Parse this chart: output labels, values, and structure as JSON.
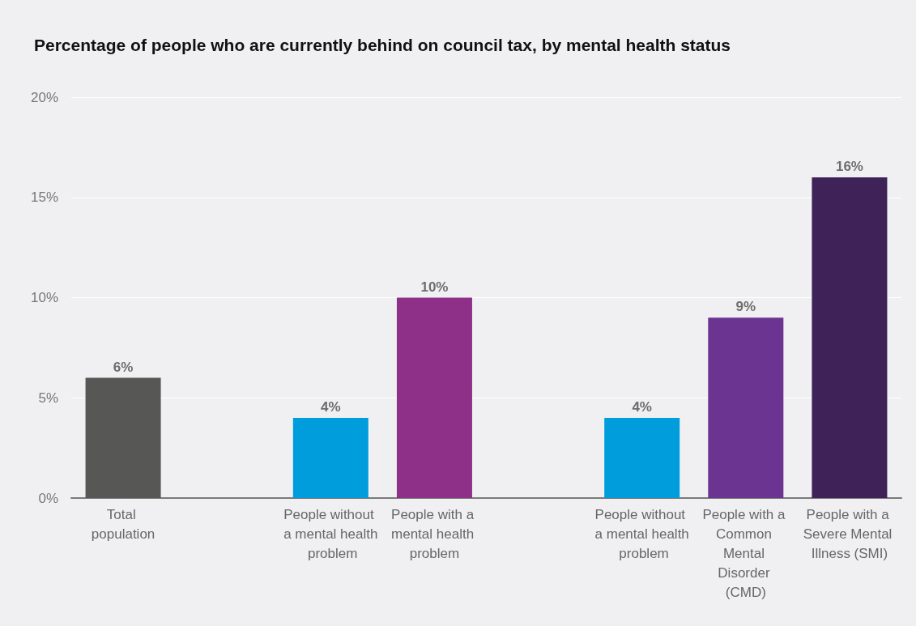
{
  "chart_data": {
    "type": "bar",
    "title": "Percentage of people who are currently behind on council tax, by mental health status",
    "categories": [
      "Total population",
      null,
      "People without a mental health problem",
      "People with a mental health problem",
      null,
      "People without a mental health problem",
      "People with a Common Mental Disorder (CMD)",
      "People with a Severe Mental Illness (SMI)"
    ],
    "values": [
      6,
      null,
      4,
      10,
      null,
      4,
      9,
      16
    ],
    "colors": [
      "#575756",
      null,
      "#009ddc",
      "#8e2f88",
      null,
      "#009ddc",
      "#6a3490",
      "#3f2358"
    ],
    "value_labels": [
      "6%",
      null,
      "4%",
      "10%",
      null,
      "4%",
      "9%",
      "16%"
    ],
    "ylim": [
      0,
      20
    ],
    "yticks": [
      {
        "value": 0,
        "label": "0%"
      },
      {
        "value": 5,
        "label": "5%"
      },
      {
        "value": 10,
        "label": "10%"
      },
      {
        "value": 15,
        "label": "15%"
      },
      {
        "value": 20,
        "label": "20%"
      }
    ],
    "grid": "y"
  }
}
